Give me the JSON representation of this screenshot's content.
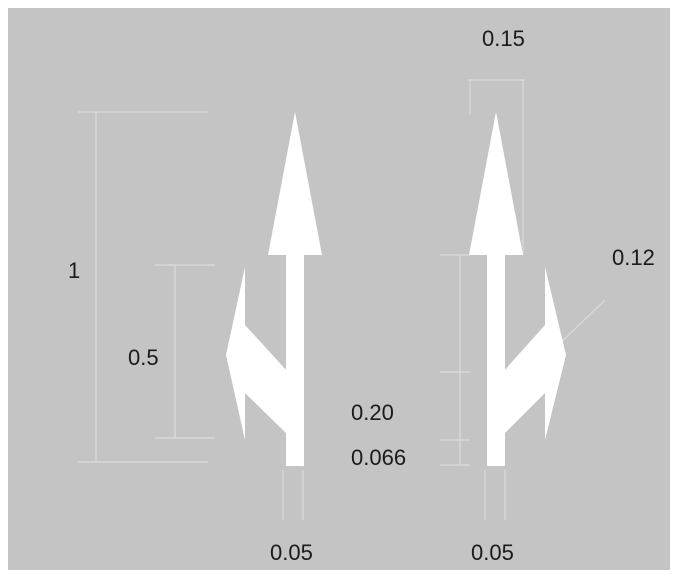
{
  "colors": {
    "panel_background": "#c4c4c4",
    "arrow_fill": "#ffffff",
    "dimension_line": "#dcdcdc",
    "label_text": "#1a1a1a"
  },
  "diagram": {
    "arrow_left": {
      "shape": "straight arrow with branch arrow pointing left",
      "dimensions": {
        "overall_height": "1",
        "branch_height": "0.5",
        "shaft_width": "0.05"
      }
    },
    "arrow_right": {
      "shape": "straight arrow with branch arrow pointing right",
      "dimensions": {
        "head_length": "0.15",
        "branch_head_width": "0.12",
        "branch_spacing": "0.20",
        "bottom_offset": "0.066",
        "shaft_width": "0.05"
      }
    }
  }
}
